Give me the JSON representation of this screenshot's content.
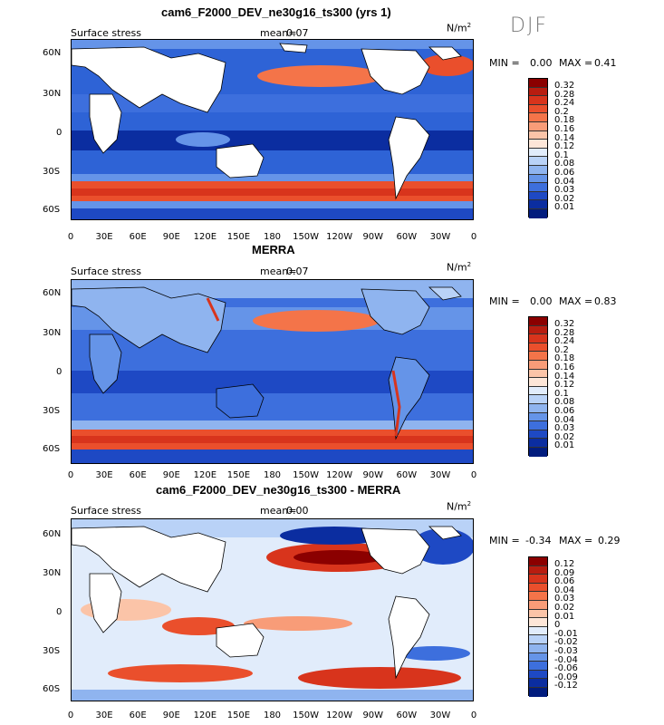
{
  "season": "DJF",
  "units": "N/m",
  "units_sup": "2",
  "variable": "Surface stress",
  "panels": [
    {
      "title": "cam6_F2000_DEV_ne30g16_ts300 (yrs 1)",
      "mean_label": "mean=",
      "mean_value": "0.07",
      "min_label": "MIN =",
      "min_value": "0.00",
      "max_label": "MAX =",
      "max_value": "0.41"
    },
    {
      "title": "MERRA",
      "mean_label": "mean=",
      "mean_value": "0.07",
      "min_label": "MIN =",
      "min_value": "0.00",
      "max_label": "MAX =",
      "max_value": "0.83"
    },
    {
      "title": "cam6_F2000_DEV_ne30g16_ts300 - MERRA",
      "mean_label": "mean=",
      "mean_value": "0.00",
      "min_label": "MIN =",
      "min_value": "-0.34",
      "max_label": "MAX =",
      "max_value": "0.29"
    }
  ],
  "lat_labels": [
    "60N",
    "30N",
    "0",
    "30S",
    "60S"
  ],
  "lon_labels": [
    "0",
    "30E",
    "60E",
    "90E",
    "120E",
    "150E",
    "180",
    "150W",
    "120W",
    "90W",
    "60W",
    "30W",
    "0"
  ],
  "colorbars": {
    "abs": {
      "levels": [
        "0.32",
        "0.28",
        "0.24",
        "0.2",
        "0.18",
        "0.16",
        "0.14",
        "0.12",
        "0.1",
        "0.08",
        "0.06",
        "0.04",
        "0.03",
        "0.02",
        "0.01"
      ],
      "colors": [
        "#8b0000",
        "#b81d10",
        "#d8341c",
        "#ea4f2c",
        "#f47449",
        "#f89c78",
        "#fbc4a8",
        "#fde6d8",
        "#e1ecfb",
        "#b9d2f7",
        "#8fb4ef",
        "#6594e8",
        "#3d6fdd",
        "#1e49c4",
        "#0b2da0",
        "#011c7e"
      ]
    },
    "diff": {
      "levels": [
        "0.12",
        "0.09",
        "0.06",
        "0.04",
        "0.03",
        "0.02",
        "0.01",
        "0",
        "-0.01",
        "-0.02",
        "-0.03",
        "-0.04",
        "-0.06",
        "-0.09",
        "-0.12"
      ],
      "colors": [
        "#8b0000",
        "#b81d10",
        "#d8341c",
        "#ea4f2c",
        "#f47449",
        "#f89c78",
        "#fbc4a8",
        "#fde6d8",
        "#e1ecfb",
        "#b9d2f7",
        "#8fb4ef",
        "#6594e8",
        "#3d6fdd",
        "#1e49c4",
        "#0b2da0",
        "#011c7e"
      ]
    }
  }
}
